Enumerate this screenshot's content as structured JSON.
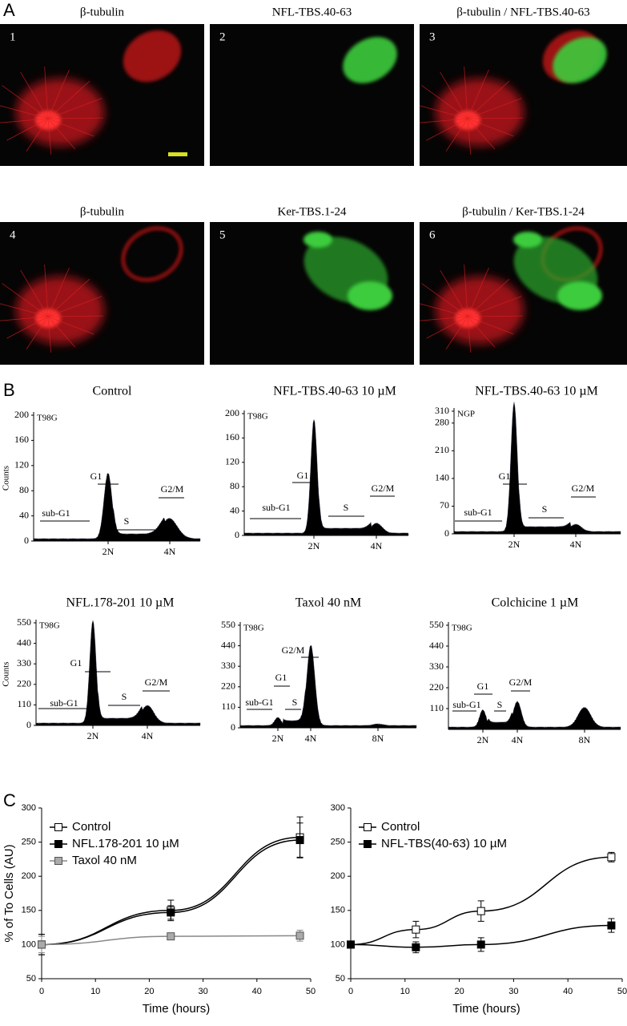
{
  "panel_a": {
    "label": "A",
    "images": [
      {
        "title": "β-tubulin",
        "number": "1"
      },
      {
        "title": "NFL-TBS.40-63",
        "number": "2"
      },
      {
        "title": "β-tubulin / NFL-TBS.40-63",
        "number": "3"
      },
      {
        "title": "β-tubulin",
        "number": "4"
      },
      {
        "title": "Ker-TBS.1-24",
        "number": "5"
      },
      {
        "title": "β-tubulin / Ker-TBS.1-24",
        "number": "6"
      }
    ]
  },
  "panel_b": {
    "label": "B",
    "counts_label": "Counts",
    "plots": [
      {
        "title": "Control",
        "cell": "T98G",
        "ylim": [
          0,
          200
        ],
        "yticks": [
          0,
          40,
          80,
          120,
          160,
          200
        ],
        "xlabels": [
          "2N",
          "4N"
        ],
        "gates": [
          "sub-G1",
          "G1",
          "S",
          "G2/M"
        ],
        "counts": true
      },
      {
        "title": "NFL-TBS.40-63 10 µM",
        "cell": "T98G",
        "ylim": [
          0,
          200
        ],
        "yticks": [
          0,
          40,
          80,
          120,
          160,
          200
        ],
        "xlabels": [
          "2N",
          "4N"
        ],
        "gates": [
          "sub-G1",
          "G1",
          "S",
          "G2/M"
        ]
      },
      {
        "title": "NFL-TBS.40-63 10 µM",
        "cell": "NGP",
        "ylim": [
          0,
          310
        ],
        "yticks": [
          0,
          70,
          140,
          210,
          280,
          310
        ],
        "xlabels": [
          "2N",
          "4N"
        ],
        "gates": [
          "sub-G1",
          "G1",
          "S",
          "G2/M"
        ]
      },
      {
        "title": "NFL.178-201 10 µM",
        "cell": "T98G",
        "ylim": [
          0,
          550
        ],
        "yticks": [
          0,
          110,
          220,
          330,
          440,
          550
        ],
        "xlabels": [
          "2N",
          "4N"
        ],
        "gates": [
          "sub-G1",
          "G1",
          "S",
          "G2/M"
        ],
        "counts": true
      },
      {
        "title": "Taxol 40 nM",
        "cell": "T98G",
        "ylim": [
          0,
          550
        ],
        "yticks": [
          0,
          110,
          220,
          330,
          440,
          550
        ],
        "xlabels": [
          "2N",
          "4N",
          "8N"
        ],
        "gates": [
          "sub-G1",
          "G1",
          "S",
          "G2/M"
        ]
      },
      {
        "title": "Colchicine 1 µM",
        "cell": "T98G",
        "ylim": [
          0,
          550
        ],
        "yticks": [
          110,
          220,
          330,
          440,
          550
        ],
        "xlabels": [
          "2N",
          "4N",
          "8N"
        ],
        "gates": [
          "sub-G1",
          "G1",
          "S",
          "G2/M"
        ]
      }
    ]
  },
  "panel_c": {
    "label": "C"
  },
  "chart_data": [
    {
      "type": "line",
      "ylabel": "% of To Cells (AU)",
      "xlabel": "Time (hours)",
      "x": [
        0,
        24,
        48
      ],
      "xlim": [
        0,
        50
      ],
      "xticks": [
        0,
        10,
        20,
        30,
        40,
        50
      ],
      "ylim": [
        50,
        300
      ],
      "yticks": [
        50,
        100,
        150,
        200,
        250,
        300
      ],
      "series": [
        {
          "name": "Control",
          "color": "#000000",
          "fill": "#ffffff",
          "values": [
            100,
            150,
            257
          ],
          "errors": [
            15,
            15,
            30
          ]
        },
        {
          "name": "NFL.178-201 10 µM",
          "color": "#000000",
          "fill": "#000000",
          "values": [
            100,
            147,
            253
          ],
          "errors": [
            15,
            10,
            25
          ]
        },
        {
          "name": "Taxol 40 nM",
          "color": "#888888",
          "fill": "#aaaaaa",
          "values": [
            100,
            112,
            113
          ],
          "errors": [
            12,
            3,
            8
          ]
        }
      ]
    },
    {
      "type": "line",
      "xlabel": "Time (hours)",
      "x": [
        0,
        12,
        24,
        48
      ],
      "xlim": [
        0,
        50
      ],
      "xticks": [
        0,
        10,
        20,
        30,
        40,
        50
      ],
      "ylim": [
        50,
        300
      ],
      "yticks": [
        50,
        100,
        150,
        200,
        250,
        300
      ],
      "series": [
        {
          "name": "Control",
          "color": "#000000",
          "fill": "#ffffff",
          "values": [
            100,
            122,
            149,
            228
          ],
          "errors": [
            2,
            12,
            15,
            7
          ]
        },
        {
          "name": "NFL-TBS(40-63) 10 µM",
          "color": "#000000",
          "fill": "#000000",
          "values": [
            100,
            96,
            100,
            128
          ],
          "errors": [
            2,
            8,
            10,
            10
          ]
        }
      ]
    }
  ]
}
